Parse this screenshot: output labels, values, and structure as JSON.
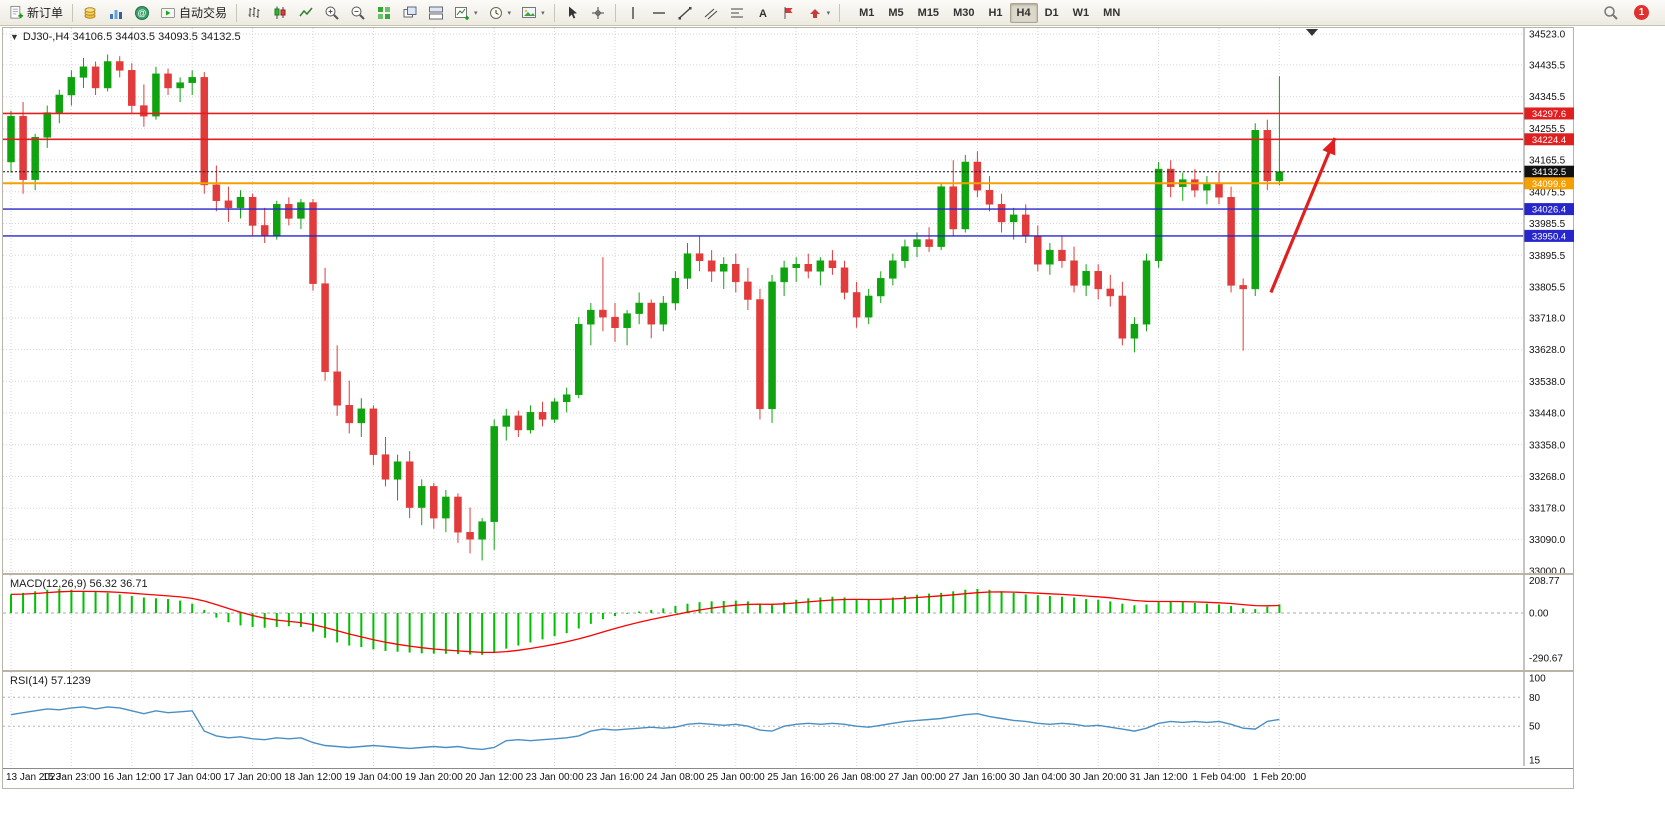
{
  "toolbar": {
    "new_order_label": "新订单",
    "auto_trading_label": "自动交易",
    "timeframes": [
      "M1",
      "M5",
      "M15",
      "M30",
      "H1",
      "H4",
      "D1",
      "W1",
      "MN"
    ],
    "active_timeframe": "H4",
    "notification_count": "1",
    "icon_names": [
      "new-order-icon",
      "coins-icon",
      "market-watch-icon",
      "community-icon",
      "autotrading-icon",
      "bars-chart-icon",
      "candlestick-chart-icon",
      "line-chart-icon",
      "zoom-in-icon",
      "zoom-out-icon",
      "tile-windows-icon",
      "cascade-windows-icon",
      "tile-horizontal-icon",
      "new-chart-icon",
      "period-icon",
      "template-icon",
      "cursor-icon",
      "crosshair-icon",
      "vertical-line-icon",
      "horizontal-line-icon",
      "trendline-icon",
      "channel-icon",
      "fibonacci-icon",
      "text-icon",
      "label-icon",
      "shapes-icon",
      "search-icon",
      "notification-icon"
    ]
  },
  "chart_data": {
    "type": "candlestick",
    "symbol_period": "DJ30-,H4",
    "ohlc_label": "34106.5 34403.5 34093.5 34132.5",
    "price_axis_range": {
      "max": 34523.0,
      "min": 33000.0
    },
    "price_axis_labels": [
      "34523.0",
      "34435.5",
      "34345.5",
      "34255.5",
      "34165.5",
      "34075.5",
      "33985.5",
      "33895.5",
      "33805.5",
      "33718.0",
      "33628.0",
      "33538.0",
      "33448.0",
      "33358.0",
      "33268.0",
      "33178.0",
      "33090.0",
      "33000.0"
    ],
    "time_axis_labels": [
      "13 Jan 2023",
      "15 Jan 23:00",
      "16 Jan 12:00",
      "17 Jan 04:00",
      "17 Jan 20:00",
      "18 Jan 12:00",
      "19 Jan 04:00",
      "19 Jan 20:00",
      "20 Jan 12:00",
      "23 Jan 00:00",
      "23 Jan 16:00",
      "24 Jan 08:00",
      "25 Jan 00:00",
      "25 Jan 16:00",
      "26 Jan 08:00",
      "27 Jan 00:00",
      "27 Jan 16:00",
      "30 Jan 04:00",
      "30 Jan 20:00",
      "31 Jan 12:00",
      "1 Feb 04:00",
      "1 Feb 20:00"
    ],
    "bars_per_tick": 5,
    "colors": {
      "up": "#0fa30f",
      "down": "#e23b3b",
      "grid": "#d6d6d6",
      "axis_text": "#111111"
    },
    "candles": [
      [
        34160,
        34305,
        34130,
        34290
      ],
      [
        34290,
        34330,
        34070,
        34110
      ],
      [
        34110,
        34240,
        34080,
        34230
      ],
      [
        34230,
        34320,
        34200,
        34300
      ],
      [
        34300,
        34365,
        34270,
        34350
      ],
      [
        34350,
        34420,
        34320,
        34400
      ],
      [
        34400,
        34455,
        34370,
        34430
      ],
      [
        34430,
        34445,
        34350,
        34370
      ],
      [
        34370,
        34465,
        34360,
        34445
      ],
      [
        34445,
        34460,
        34400,
        34420
      ],
      [
        34420,
        34440,
        34300,
        34320
      ],
      [
        34320,
        34380,
        34260,
        34290
      ],
      [
        34290,
        34430,
        34280,
        34410
      ],
      [
        34410,
        34425,
        34350,
        34370
      ],
      [
        34370,
        34400,
        34330,
        34385
      ],
      [
        34385,
        34420,
        34350,
        34400
      ],
      [
        34400,
        34415,
        34070,
        34095
      ],
      [
        34095,
        34150,
        34020,
        34050
      ],
      [
        34050,
        34090,
        33990,
        34030
      ],
      [
        34030,
        34080,
        34000,
        34060
      ],
      [
        34060,
        34070,
        33950,
        33980
      ],
      [
        33980,
        34030,
        33930,
        33950
      ],
      [
        33950,
        34050,
        33940,
        34040
      ],
      [
        34040,
        34060,
        33980,
        34000
      ],
      [
        34000,
        34055,
        33970,
        34045
      ],
      [
        34045,
        34055,
        33795,
        33815
      ],
      [
        33815,
        33860,
        33540,
        33565
      ],
      [
        33565,
        33640,
        33440,
        33470
      ],
      [
        33470,
        33540,
        33390,
        33420
      ],
      [
        33420,
        33490,
        33380,
        33460
      ],
      [
        33460,
        33470,
        33300,
        33330
      ],
      [
        33330,
        33380,
        33240,
        33260
      ],
      [
        33260,
        33330,
        33200,
        33310
      ],
      [
        33310,
        33340,
        33150,
        33180
      ],
      [
        33180,
        33260,
        33130,
        33240
      ],
      [
        33240,
        33250,
        33120,
        33150
      ],
      [
        33150,
        33230,
        33110,
        33210
      ],
      [
        33210,
        33220,
        33080,
        33110
      ],
      [
        33110,
        33180,
        33050,
        33090
      ],
      [
        33090,
        33150,
        33030,
        33140
      ],
      [
        33140,
        33430,
        33060,
        33410
      ],
      [
        33410,
        33460,
        33370,
        33440
      ],
      [
        33440,
        33455,
        33380,
        33400
      ],
      [
        33400,
        33470,
        33390,
        33450
      ],
      [
        33450,
        33480,
        33410,
        33430
      ],
      [
        33430,
        33490,
        33420,
        33480
      ],
      [
        33480,
        33520,
        33450,
        33500
      ],
      [
        33500,
        33720,
        33490,
        33700
      ],
      [
        33700,
        33760,
        33640,
        33740
      ],
      [
        33740,
        33890,
        33680,
        33720
      ],
      [
        33720,
        33760,
        33650,
        33690
      ],
      [
        33690,
        33740,
        33640,
        33730
      ],
      [
        33730,
        33790,
        33700,
        33760
      ],
      [
        33760,
        33770,
        33660,
        33700
      ],
      [
        33700,
        33780,
        33680,
        33760
      ],
      [
        33760,
        33850,
        33740,
        33830
      ],
      [
        33830,
        33930,
        33800,
        33900
      ],
      [
        33900,
        33950,
        33850,
        33880
      ],
      [
        33880,
        33910,
        33820,
        33850
      ],
      [
        33850,
        33890,
        33800,
        33870
      ],
      [
        33870,
        33900,
        33790,
        33820
      ],
      [
        33820,
        33860,
        33740,
        33770
      ],
      [
        33770,
        33800,
        33430,
        33460
      ],
      [
        33460,
        33840,
        33420,
        33820
      ],
      [
        33820,
        33880,
        33780,
        33860
      ],
      [
        33860,
        33890,
        33820,
        33870
      ],
      [
        33870,
        33900,
        33830,
        33850
      ],
      [
        33850,
        33890,
        33810,
        33880
      ],
      [
        33880,
        33910,
        33840,
        33860
      ],
      [
        33860,
        33880,
        33770,
        33790
      ],
      [
        33790,
        33820,
        33690,
        33720
      ],
      [
        33720,
        33800,
        33700,
        33780
      ],
      [
        33780,
        33850,
        33760,
        33830
      ],
      [
        33830,
        33900,
        33810,
        33880
      ],
      [
        33880,
        33940,
        33860,
        33920
      ],
      [
        33920,
        33960,
        33890,
        33940
      ],
      [
        33940,
        33975,
        33905,
        33920
      ],
      [
        33920,
        34100,
        33910,
        34090
      ],
      [
        34090,
        34165,
        33950,
        33970
      ],
      [
        33970,
        34180,
        33960,
        34160
      ],
      [
        34160,
        34190,
        34060,
        34080
      ],
      [
        34080,
        34120,
        34020,
        34040
      ],
      [
        34040,
        34070,
        33960,
        33990
      ],
      [
        33990,
        34030,
        33940,
        34010
      ],
      [
        34010,
        34040,
        33930,
        33950
      ],
      [
        33950,
        33980,
        33850,
        33870
      ],
      [
        33870,
        33930,
        33840,
        33910
      ],
      [
        33910,
        33950,
        33860,
        33880
      ],
      [
        33880,
        33920,
        33790,
        33810
      ],
      [
        33810,
        33870,
        33780,
        33850
      ],
      [
        33850,
        33870,
        33770,
        33800
      ],
      [
        33800,
        33840,
        33750,
        33780
      ],
      [
        33780,
        33820,
        33640,
        33660
      ],
      [
        33660,
        33720,
        33620,
        33700
      ],
      [
        33700,
        33900,
        33680,
        33880
      ],
      [
        33880,
        34160,
        33860,
        34140
      ],
      [
        34140,
        34165,
        34060,
        34090
      ],
      [
        34090,
        34130,
        34050,
        34110
      ],
      [
        34110,
        34140,
        34060,
        34080
      ],
      [
        34080,
        34120,
        34040,
        34100
      ],
      [
        34100,
        34130,
        34040,
        34060
      ],
      [
        34060,
        34090,
        33790,
        33810
      ],
      [
        33810,
        33830,
        33625,
        33800
      ],
      [
        33800,
        34270,
        33780,
        34250
      ],
      [
        34250,
        34280,
        34080,
        34106.5
      ],
      [
        34106.5,
        34403.5,
        34093.5,
        34132.5
      ]
    ],
    "levels": [
      {
        "name": "resistance-line-1",
        "price": 34297.6,
        "label": "34297.6",
        "color": "#e02020",
        "width": 1.6,
        "style": "solid"
      },
      {
        "name": "resistance-line-2",
        "price": 34224.4,
        "label": "34224.4",
        "color": "#e02020",
        "width": 1.6,
        "style": "solid"
      },
      {
        "name": "bid-price-line",
        "price": 34132.5,
        "label": "34132.5",
        "color": "#111111",
        "width": 1,
        "style": "dotted"
      },
      {
        "name": "pivot-line",
        "price": 34099.6,
        "label": "34099.6",
        "color": "#f5a000",
        "width": 2,
        "style": "solid"
      },
      {
        "name": "support-line-1",
        "price": 34026.4,
        "label": "34026.4",
        "color": "#2626cc",
        "width": 1.4,
        "style": "solid"
      },
      {
        "name": "support-line-2",
        "price": 33950.4,
        "label": "33950.4",
        "color": "#2626cc",
        "width": 1.4,
        "style": "solid"
      }
    ],
    "arrow_annotation": {
      "from_bar": 104.3,
      "from_price": 33790,
      "to_bar": 109.6,
      "to_price": 34228,
      "color": "#e02020"
    },
    "indicators": {
      "macd": {
        "label": "MACD(12,26,9) 56.32 36.71",
        "axis_labels": [
          "208.77",
          "0.00",
          "-290.67"
        ],
        "axis_max": 208.77,
        "axis_min": -290.67,
        "histogram_color": "#00c000",
        "signal_color": "#ff0000",
        "values": [
          120,
          130,
          140,
          150,
          155,
          150,
          140,
          135,
          130,
          120,
          110,
          100,
          95,
          90,
          80,
          60,
          20,
          -30,
          -60,
          -80,
          -90,
          -95,
          -90,
          -85,
          -90,
          -120,
          -160,
          -190,
          -210,
          -220,
          -235,
          -245,
          -250,
          -255,
          -260,
          -262,
          -263,
          -265,
          -268,
          -270,
          -255,
          -230,
          -210,
          -190,
          -170,
          -150,
          -130,
          -100,
          -70,
          -40,
          -20,
          -5,
          10,
          20,
          30,
          45,
          60,
          70,
          75,
          78,
          80,
          75,
          60,
          55,
          70,
          85,
          95,
          100,
          105,
          100,
          90,
          85,
          90,
          100,
          110,
          118,
          125,
          130,
          140,
          150,
          155,
          150,
          140,
          130,
          120,
          115,
          110,
          105,
          100,
          90,
          85,
          75,
          60,
          50,
          55,
          70,
          75,
          70,
          65,
          60,
          55,
          45,
          30,
          25,
          40,
          56.32
        ]
      },
      "rsi": {
        "label": "RSI(14) 57.1239",
        "axis_labels": [
          "100",
          "80",
          "50",
          "15"
        ],
        "level_lines": [
          80,
          50
        ],
        "line_color": "#4a8fc2",
        "values": [
          62,
          64,
          66,
          68,
          67,
          69,
          70,
          68,
          70,
          69,
          66,
          63,
          66,
          64,
          65,
          66,
          45,
          40,
          38,
          39,
          37,
          36,
          38,
          37,
          38,
          33,
          30,
          29,
          28,
          29,
          30,
          29,
          28,
          27,
          28,
          29,
          28,
          29,
          27,
          26,
          28,
          35,
          36,
          35,
          36,
          37,
          38,
          40,
          45,
          47,
          46,
          47,
          48,
          49,
          48,
          49,
          52,
          53,
          52,
          51,
          52,
          50,
          46,
          45,
          50,
          52,
          53,
          52,
          53,
          52,
          50,
          49,
          51,
          53,
          55,
          56,
          57,
          58,
          60,
          62,
          63,
          60,
          58,
          56,
          55,
          53,
          52,
          53,
          52,
          50,
          51,
          49,
          47,
          45,
          48,
          53,
          55,
          54,
          55,
          54,
          55,
          52,
          48,
          47,
          55,
          57.12
        ]
      }
    }
  }
}
